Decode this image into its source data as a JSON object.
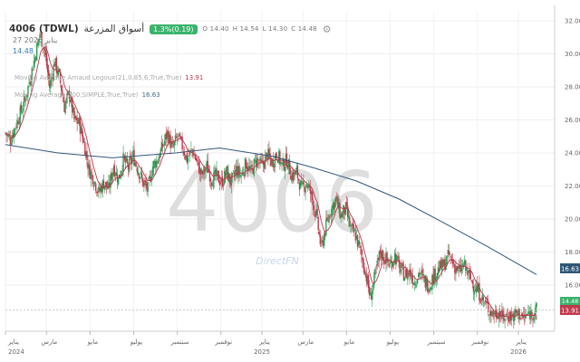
{
  "header": {
    "symbol": "4006 (TDWL)",
    "name": "أسواق المزرعة",
    "change": "1.3%(0.19)",
    "ohlc": {
      "o": "O 14.40",
      "h": "H 14.54",
      "l": "L 14.30",
      "c": "C 14.48"
    },
    "date": "27 يناير 2026",
    "last_price": "14.48"
  },
  "indicators": [
    {
      "label": "Moving Average Arnaud Legoux(21,0.85,6,True,True)",
      "value": "13.91",
      "color": "#c0394b"
    },
    {
      "label": "Moving Average(200,SIMPLE,True,True)",
      "value": "16.63",
      "color": "#2f5676"
    }
  ],
  "watermark": "4006",
  "brand": "DirectFN",
  "colors": {
    "up": "#2e9e55",
    "down": "#c0394b",
    "alma": "#b23a4d",
    "sma": "#34577a",
    "price_tag": "#3bb36b"
  },
  "price_tags": {
    "last": "14.48",
    "sma": "16.63",
    "alma": "13.91"
  },
  "chart_data": {
    "type": "line",
    "x_axis_labels": [
      {
        "label": "يناير",
        "year": "2024",
        "pos": 0.0
      },
      {
        "label": "مارس",
        "pos": 0.08
      },
      {
        "label": "مايو",
        "pos": 0.165
      },
      {
        "label": "يوليو",
        "pos": 0.25
      },
      {
        "label": "سبتمبر",
        "pos": 0.335
      },
      {
        "label": "نوفمبر",
        "pos": 0.42
      },
      {
        "label": "يناير",
        "year": "2025",
        "pos": 0.5
      },
      {
        "label": "مارس",
        "pos": 0.58
      },
      {
        "label": "مايو",
        "pos": 0.665
      },
      {
        "label": "يوليو",
        "pos": 0.75
      },
      {
        "label": "سبتمبر",
        "pos": 0.835
      },
      {
        "label": "نوفمبر",
        "pos": 0.92
      },
      {
        "label": "يناير",
        "year": "2026",
        "pos": 1.0
      }
    ],
    "y_ticks": [
      16,
      18,
      20,
      22,
      24,
      26,
      28,
      30,
      32
    ],
    "ylim": [
      13.2,
      32.6
    ],
    "price_series": [
      [
        "2024-01-01",
        25.2
      ],
      [
        "2024-01-08",
        24.8
      ],
      [
        "2024-01-15",
        25.6
      ],
      [
        "2024-01-22",
        26.4
      ],
      [
        "2024-01-29",
        27.2
      ],
      [
        "2024-02-05",
        28.5
      ],
      [
        "2024-02-12",
        29.8
      ],
      [
        "2024-02-19",
        31.2
      ],
      [
        "2024-02-26",
        30.2
      ],
      [
        "2024-03-04",
        28.0
      ],
      [
        "2024-03-11",
        29.5
      ],
      [
        "2024-03-18",
        28.6
      ],
      [
        "2024-03-25",
        26.8
      ],
      [
        "2024-04-01",
        27.6
      ],
      [
        "2024-04-08",
        26.0
      ],
      [
        "2024-04-15",
        25.8
      ],
      [
        "2024-04-22",
        24.6
      ],
      [
        "2024-04-29",
        23.0
      ],
      [
        "2024-05-06",
        22.4
      ],
      [
        "2024-05-13",
        21.6
      ],
      [
        "2024-05-20",
        22.2
      ],
      [
        "2024-05-27",
        21.8
      ],
      [
        "2024-06-03",
        23.2
      ],
      [
        "2024-06-10",
        22.4
      ],
      [
        "2024-06-17",
        23.6
      ],
      [
        "2024-06-24",
        23.1
      ],
      [
        "2024-07-01",
        23.8
      ],
      [
        "2024-07-08",
        23.0
      ],
      [
        "2024-07-15",
        22.2
      ],
      [
        "2024-07-22",
        21.8
      ],
      [
        "2024-07-29",
        23.2
      ],
      [
        "2024-08-05",
        23.6
      ],
      [
        "2024-08-12",
        24.4
      ],
      [
        "2024-08-19",
        25.2
      ],
      [
        "2024-08-26",
        24.2
      ],
      [
        "2024-09-02",
        25.0
      ],
      [
        "2024-09-09",
        24.4
      ],
      [
        "2024-09-16",
        23.6
      ],
      [
        "2024-09-23",
        24.2
      ],
      [
        "2024-09-30",
        23.4
      ],
      [
        "2024-10-07",
        22.6
      ],
      [
        "2024-10-14",
        23.2
      ],
      [
        "2024-10-21",
        22.4
      ],
      [
        "2024-10-28",
        22.6
      ],
      [
        "2024-11-04",
        22.2
      ],
      [
        "2024-11-11",
        22.8
      ],
      [
        "2024-11-18",
        22.2
      ],
      [
        "2024-11-25",
        23.0
      ],
      [
        "2024-12-02",
        22.6
      ],
      [
        "2024-12-09",
        23.4
      ],
      [
        "2024-12-16",
        22.8
      ],
      [
        "2024-12-23",
        23.6
      ],
      [
        "2025-01-01",
        23.2
      ],
      [
        "2025-01-08",
        23.9
      ],
      [
        "2025-01-15",
        23.4
      ],
      [
        "2025-01-22",
        24.0
      ],
      [
        "2025-01-29",
        23.2
      ],
      [
        "2025-02-05",
        23.6
      ],
      [
        "2025-02-12",
        22.6
      ],
      [
        "2025-02-19",
        22.8
      ],
      [
        "2025-02-26",
        21.8
      ],
      [
        "2025-03-05",
        22.2
      ],
      [
        "2025-03-12",
        21.4
      ],
      [
        "2025-03-19",
        20.2
      ],
      [
        "2025-03-26",
        18.2
      ],
      [
        "2025-04-02",
        19.6
      ],
      [
        "2025-04-09",
        20.6
      ],
      [
        "2025-04-16",
        21.2
      ],
      [
        "2025-04-23",
        20.2
      ],
      [
        "2025-04-30",
        20.6
      ],
      [
        "2025-05-07",
        19.4
      ],
      [
        "2025-05-14",
        19.0
      ],
      [
        "2025-05-21",
        18.0
      ],
      [
        "2025-05-28",
        16.8
      ],
      [
        "2025-06-04",
        15.2
      ],
      [
        "2025-06-11",
        16.6
      ],
      [
        "2025-06-18",
        18.0
      ],
      [
        "2025-06-25",
        17.6
      ],
      [
        "2025-07-02",
        17.2
      ],
      [
        "2025-07-09",
        17.8
      ],
      [
        "2025-07-16",
        17.0
      ],
      [
        "2025-07-23",
        16.6
      ],
      [
        "2025-07-30",
        16.8
      ],
      [
        "2025-08-06",
        16.2
      ],
      [
        "2025-08-13",
        16.8
      ],
      [
        "2025-08-20",
        16.2
      ],
      [
        "2025-08-27",
        16.0
      ],
      [
        "2025-09-03",
        16.6
      ],
      [
        "2025-09-10",
        17.0
      ],
      [
        "2025-09-17",
        17.2
      ],
      [
        "2025-09-24",
        17.8
      ],
      [
        "2025-10-01",
        17.2
      ],
      [
        "2025-10-08",
        16.8
      ],
      [
        "2025-10-15",
        17.2
      ],
      [
        "2025-10-22",
        16.6
      ],
      [
        "2025-10-29",
        16.0
      ],
      [
        "2025-11-05",
        15.6
      ],
      [
        "2025-11-12",
        15.0
      ],
      [
        "2025-11-19",
        14.6
      ],
      [
        "2025-11-26",
        14.2
      ],
      [
        "2025-12-03",
        14.4
      ],
      [
        "2025-12-10",
        14.0
      ],
      [
        "2025-12-17",
        14.2
      ],
      [
        "2025-12-24",
        14.1
      ],
      [
        "2026-01-01",
        14.3
      ],
      [
        "2026-01-08",
        14.0
      ],
      [
        "2026-01-15",
        14.2
      ],
      [
        "2026-01-27",
        14.48
      ]
    ],
    "series": [
      {
        "name": "Moving Average Arnaud Legoux(21,0.85,6,True,True)",
        "last": 13.91
      },
      {
        "name": "Moving Average(200,SIMPLE,True,True)",
        "last": 16.63
      }
    ]
  }
}
